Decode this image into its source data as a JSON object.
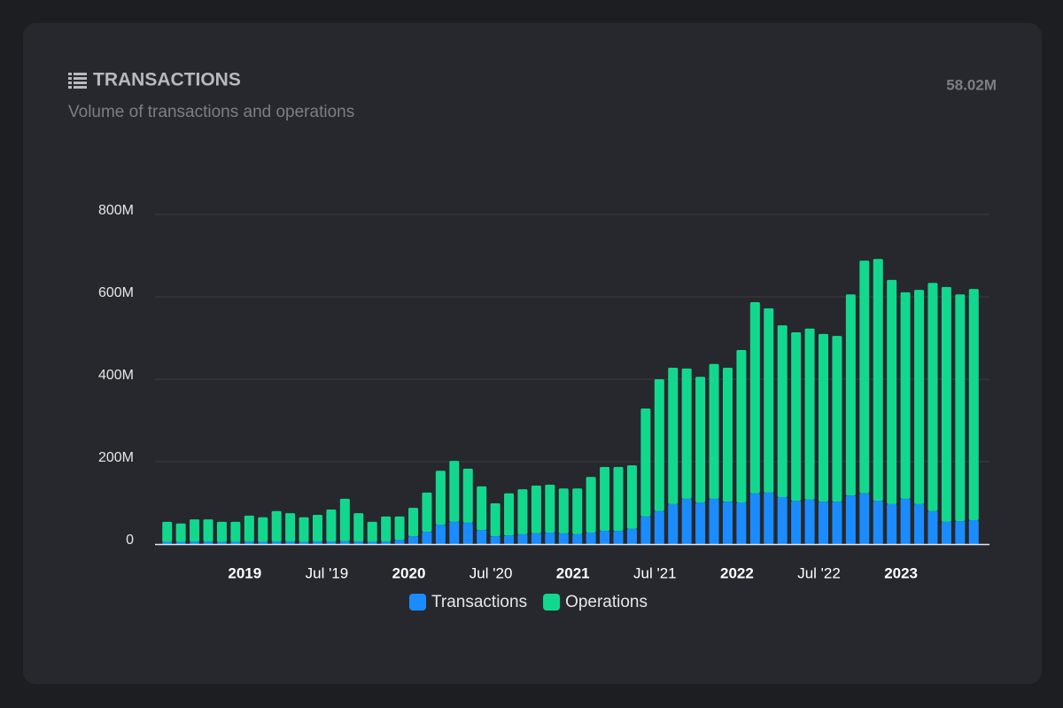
{
  "header": {
    "title": "TRANSACTIONS",
    "subtitle": "Volume of transactions and operations",
    "total": "58.02M"
  },
  "chart_data": {
    "type": "bar",
    "stacked": true,
    "categories": [
      null,
      null,
      null,
      null,
      null,
      null,
      "2019",
      null,
      null,
      null,
      null,
      null,
      "Jul '19",
      null,
      null,
      null,
      null,
      null,
      "2020",
      null,
      null,
      null,
      null,
      null,
      "Jul '20",
      null,
      null,
      null,
      null,
      null,
      "2021",
      null,
      null,
      null,
      null,
      null,
      "Jul '21",
      null,
      null,
      null,
      null,
      null,
      "2022",
      null,
      null,
      null,
      null,
      null,
      "Jul '22",
      null,
      null,
      null,
      null,
      null,
      "2023",
      null,
      null,
      null,
      null,
      null
    ],
    "series": [
      {
        "name": "Transactions",
        "color": "#1a8cff",
        "values": [
          5,
          5,
          6,
          6,
          5,
          5,
          6,
          5,
          6,
          6,
          5,
          6,
          6,
          7,
          6,
          5,
          6,
          10,
          19,
          30,
          47,
          54,
          52,
          34,
          19,
          21,
          24,
          26,
          28,
          26,
          24,
          28,
          32,
          32,
          37,
          67,
          80,
          97,
          110,
          101,
          110,
          103,
          101,
          123,
          125,
          114,
          105,
          108,
          103,
          103,
          118,
          123,
          105,
          97,
          110,
          97,
          80,
          54,
          56,
          58
        ]
      },
      {
        "name": "Operations",
        "color": "#12d88e",
        "values": [
          49,
          45,
          54,
          54,
          49,
          49,
          63,
          60,
          74,
          69,
          60,
          65,
          78,
          103,
          69,
          49,
          61,
          57,
          69,
          95,
          131,
          148,
          131,
          106,
          80,
          102,
          109,
          116,
          116,
          109,
          111,
          135,
          155,
          155,
          154,
          262,
          320,
          331,
          316,
          305,
          327,
          325,
          370,
          464,
          447,
          417,
          409,
          415,
          407,
          402,
          488,
          565,
          587,
          544,
          501,
          520,
          554,
          570,
          550,
          561
        ]
      }
    ],
    "ylim": [
      0,
      800
    ],
    "yticks": [
      0,
      {
        "value": 200,
        "label": "200M"
      },
      {
        "value": 400,
        "label": "400M"
      },
      {
        "value": 600,
        "label": "600M"
      },
      {
        "value": 800,
        "label": "800M"
      }
    ],
    "grid": true
  }
}
